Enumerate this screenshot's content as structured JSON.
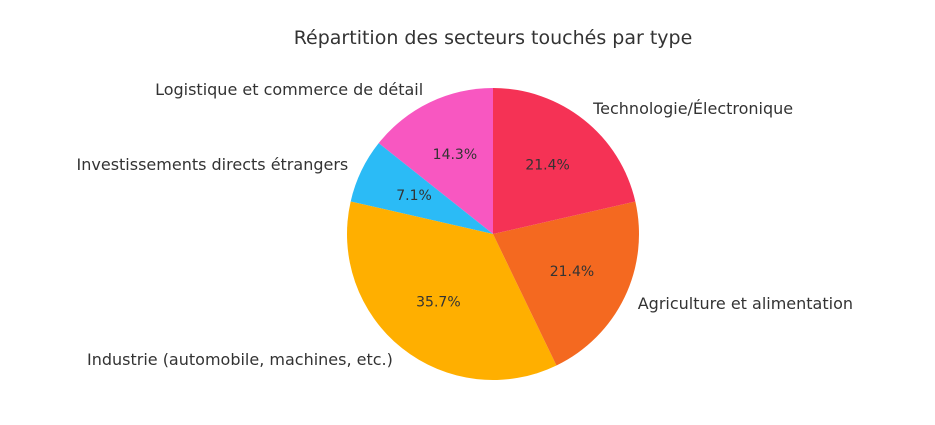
{
  "chart_data": {
    "type": "pie",
    "title": "Répartition des secteurs touchés par type",
    "start_angle_deg": 90,
    "direction": "counterclockwise",
    "slices": [
      {
        "label": "Logistique et commerce de détail",
        "value": 14.3,
        "pct_label": "14.3%",
        "color": "#F857C1"
      },
      {
        "label": "Investissements directs étrangers",
        "value": 7.1,
        "pct_label": "7.1%",
        "color": "#2BBBF6"
      },
      {
        "label": "Industrie (automobile, machines, etc.)",
        "value": 35.7,
        "pct_label": "35.7%",
        "color": "#FFAF00"
      },
      {
        "label": "Agriculture et alimentation",
        "value": 21.4,
        "pct_label": "21.4%",
        "color": "#F46920"
      },
      {
        "label": "Technologie/Électronique",
        "value": 21.4,
        "pct_label": "21.4%",
        "color": "#F53255"
      }
    ]
  }
}
